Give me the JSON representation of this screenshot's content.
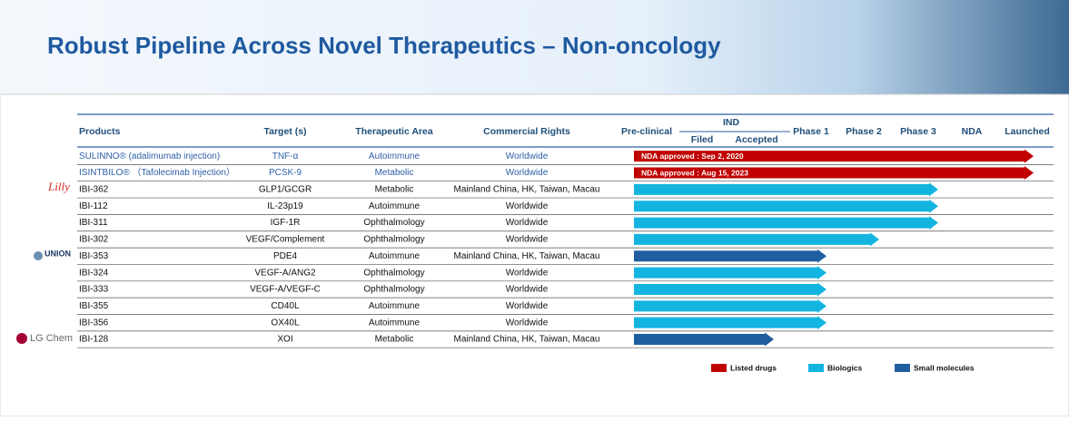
{
  "title": "Robust Pipeline Across Novel Therapeutics – Non-oncology",
  "header": {
    "products": "Products",
    "target": "Target (s)",
    "area": "Therapeutic Area",
    "rights": "Commercial Rights",
    "preclinical": "Pre-clinical",
    "ind": "IND",
    "filed": "Filed",
    "accepted": "Accepted",
    "phase1": "Phase 1",
    "phase2": "Phase 2",
    "phase3": "Phase 3",
    "nda": "NDA",
    "launched": "Launched"
  },
  "partners": [
    "Lilly",
    "UNION",
    "LG Chem"
  ],
  "rows": [
    {
      "product": "SULINNO® (adalimumab injection)",
      "target": "TNF-α",
      "area": "Autoimmune",
      "rights": "Worldwide",
      "color": "#c00000",
      "label": "NDA approved : Sep 2, 2020"
    },
    {
      "product": "ISINTBILO® （Tafolecimab Injection）",
      "target": "PCSK-9",
      "area": "Metabolic",
      "rights": "Worldwide",
      "color": "#c00000",
      "label": "NDA approved : Aug 15, 2023"
    },
    {
      "product": "IBI-362",
      "target": "GLP1/GCGR",
      "area": "Metabolic",
      "rights": "Mainland China, HK, Taiwan, Macau",
      "color": "#13b5e0"
    },
    {
      "product": "IBI-112",
      "target": "IL-23p19",
      "area": "Autoimmune",
      "rights": "Worldwide",
      "color": "#13b5e0"
    },
    {
      "product": "IBI-311",
      "target": "IGF-1R",
      "area": "Ophthalmology",
      "rights": "Worldwide",
      "color": "#13b5e0"
    },
    {
      "product": "IBI-302",
      "target": "VEGF/Complement",
      "area": "Ophthalmology",
      "rights": "Worldwide",
      "color": "#13b5e0"
    },
    {
      "product": "IBI-353",
      "target": "PDE4",
      "area": "Autoimmune",
      "rights": "Mainland China, HK, Taiwan, Macau",
      "color": "#1f5fa0"
    },
    {
      "product": "IBI-324",
      "target": "VEGF-A/ANG2",
      "area": "Ophthalmology",
      "rights": "Worldwide",
      "color": "#13b5e0"
    },
    {
      "product": "IBI-333",
      "target": "VEGF-A/VEGF-C",
      "area": "Ophthalmology",
      "rights": "Worldwide",
      "color": "#13b5e0"
    },
    {
      "product": "IBI-355",
      "target": "CD40L",
      "area": "Autoimmune",
      "rights": "Worldwide",
      "color": "#13b5e0"
    },
    {
      "product": "IBI-356",
      "target": "OX40L",
      "area": "Autoimmune",
      "rights": "Worldwide",
      "color": "#13b5e0"
    },
    {
      "product": "IBI-128",
      "target": "XOI",
      "area": "Metabolic",
      "rights": "Mainland China, HK, Taiwan, Macau",
      "color": "#1f5fa0"
    }
  ],
  "legend": [
    {
      "name": "Listed drugs",
      "color": "#c00000"
    },
    {
      "name": "Biologics",
      "color": "#13b5e0"
    },
    {
      "name": "Small molecules",
      "color": "#1f5fa0"
    }
  ]
}
